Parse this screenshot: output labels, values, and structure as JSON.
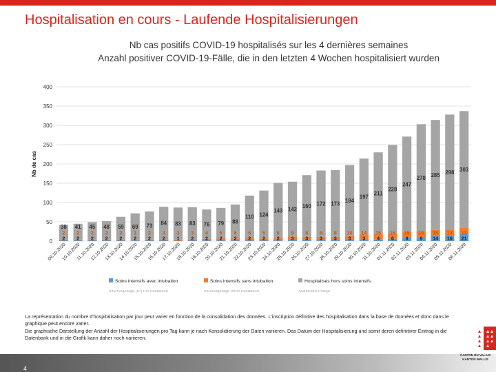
{
  "slide": {
    "title": "Hospitalisation en cours - Laufende Hospitalisierungen",
    "page_number": "4"
  },
  "notes": {
    "fr": "La représentation du nombre d'hospitalisation par jour peut varier en fonction de la consolidation des données. L'inscription définitive des hospitalisation dans la base de données et donc dans le graphique peut encore varier.",
    "de": "Die graphische Darstellung der Anzahl der Hospitalisierungen pro Tag kann je nach Konsolidierung der Daten variieren. Das Datum der Hospitalisierung und somit deren definitiver Eintrag in die Datenbank und in die Grafik kann daher noch variieren."
  },
  "logo": {
    "line1": "CANTON DU VALAIS",
    "line2": "KANTON WALLIS"
  },
  "colors": {
    "accent": "#d9261c",
    "icu_intubated": "#5b9bd5",
    "icu_not_intubated": "#ed7d31",
    "non_icu": "#a5a5a5"
  },
  "chart_data": {
    "type": "bar",
    "stacked": true,
    "title": "Nb cas positifs COVID-19 hospitalisés sur les 4 dernières semaines",
    "subtitle": "Anzahl positiver COVID-19-Fälle, die in den letzten 4 Wochen hospitalisiert wurden",
    "ylabel": "Nb de cas",
    "xlabel": "",
    "ylim": [
      0,
      400
    ],
    "yticks": [
      0,
      50,
      100,
      150,
      200,
      250,
      300,
      350,
      400
    ],
    "grid": true,
    "legend_position": "bottom",
    "categories": [
      "09.10.2020",
      "10.10.2020",
      "11.10.2020",
      "12.10.2020",
      "13.10.2020",
      "14.10.2020",
      "15.10.2020",
      "16.10.2020",
      "17.10.2020",
      "18.10.2020",
      "19.10.2020",
      "20.10.2020",
      "21.10.2020",
      "22.10.2020",
      "23.10.2020",
      "24.10.2020",
      "25.10.2020",
      "26.10.2020",
      "27.10.2020",
      "28.10.2020",
      "29.10.2020",
      "30.10.2020",
      "31.10.2020",
      "01.11.2020",
      "02.11.2020",
      "03.11.2020",
      "04.11.2020",
      "05.11.2020",
      "06.11.2020"
    ],
    "series": [
      {
        "name": "Soins intensifs avec intubation",
        "values": [
          2,
          2,
          2,
          2,
          2,
          2,
          2,
          2,
          1,
          2,
          2,
          2,
          2,
          2,
          2,
          2,
          3,
          3,
          3,
          3,
          3,
          3,
          4,
          6,
          9,
          9,
          14,
          16,
          21
        ]
      },
      {
        "name": "Soins intensifs sans intubation",
        "values": [
          2,
          2,
          2,
          2,
          2,
          1,
          2,
          3,
          3,
          3,
          4,
          5,
          5,
          6,
          5,
          6,
          9,
          8,
          8,
          8,
          10,
          14,
          15,
          15,
          15,
          16,
          15,
          14,
          13
        ]
      },
      {
        "name": "Hospitalisés hors soins intensifs",
        "values": [
          38,
          41,
          45,
          48,
          59,
          69,
          73,
          84,
          83,
          83,
          76,
          79,
          88,
          110,
          124,
          143,
          142,
          160,
          172,
          173,
          184,
          197,
          211,
          228,
          247,
          278,
          285,
          298,
          303
        ]
      }
    ],
    "hidden_legend_text": [
      "Intensivpflege (IP) mit Intubation",
      "Intensivpflege ohne Intubation",
      "Stationäre Pflege"
    ]
  }
}
